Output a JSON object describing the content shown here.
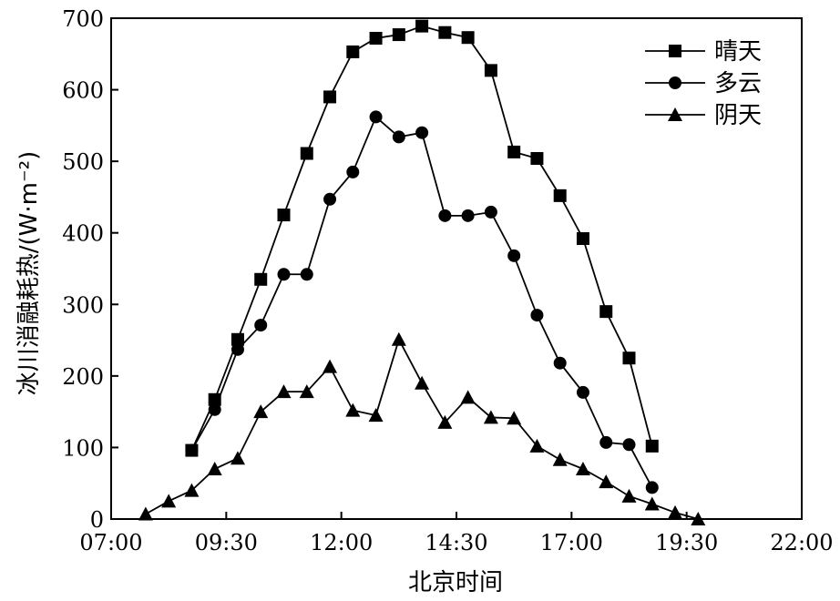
{
  "chart_data": {
    "type": "line",
    "xlabel": "北京时间",
    "ylabel": "冰川消融耗热/(W·m⁻²)",
    "xlim": [
      "07:00",
      "22:00"
    ],
    "ylim": [
      0,
      700
    ],
    "x_ticks": [
      "07:00",
      "09:30",
      "12:00",
      "14:30",
      "17:00",
      "19:30",
      "22:00"
    ],
    "y_ticks": [
      0,
      100,
      200,
      300,
      400,
      500,
      600,
      700
    ],
    "grid": false,
    "legend_position": "top-right",
    "series": [
      {
        "name": "晴天",
        "marker": "square",
        "x": [
          "08:45",
          "09:15",
          "09:45",
          "10:15",
          "10:45",
          "11:15",
          "11:45",
          "12:15",
          "12:45",
          "13:15",
          "13:45",
          "14:15",
          "14:45",
          "15:15",
          "15:45",
          "16:15",
          "16:45",
          "17:15",
          "17:45",
          "18:15",
          "18:45"
        ],
        "values": [
          96,
          167,
          251,
          335,
          425,
          511,
          590,
          653,
          672,
          677,
          689,
          680,
          673,
          627,
          513,
          504,
          452,
          392,
          290,
          225,
          102
        ]
      },
      {
        "name": "多云",
        "marker": "circle",
        "x": [
          "08:45",
          "09:15",
          "09:45",
          "10:15",
          "10:45",
          "11:15",
          "11:45",
          "12:15",
          "12:45",
          "13:15",
          "13:45",
          "14:15",
          "14:45",
          "15:15",
          "15:45",
          "16:15",
          "16:45",
          "17:15",
          "17:45",
          "18:15",
          "18:45"
        ],
        "values": [
          96,
          153,
          237,
          271,
          342,
          342,
          447,
          485,
          562,
          534,
          540,
          424,
          424,
          429,
          368,
          285,
          218,
          177,
          107,
          104,
          44
        ]
      },
      {
        "name": "阴天",
        "marker": "triangle",
        "x": [
          "07:45",
          "08:15",
          "08:45",
          "09:15",
          "09:45",
          "10:15",
          "10:45",
          "11:15",
          "11:45",
          "12:15",
          "12:45",
          "13:15",
          "13:45",
          "14:15",
          "14:45",
          "15:15",
          "15:45",
          "16:15",
          "16:45",
          "17:15",
          "17:45",
          "18:15",
          "18:45",
          "19:15",
          "19:45"
        ],
        "values": [
          7,
          25,
          40,
          70,
          85,
          150,
          178,
          178,
          213,
          152,
          145,
          251,
          190,
          135,
          170,
          142,
          141,
          102,
          83,
          70,
          52,
          32,
          21,
          9,
          0
        ]
      }
    ]
  }
}
